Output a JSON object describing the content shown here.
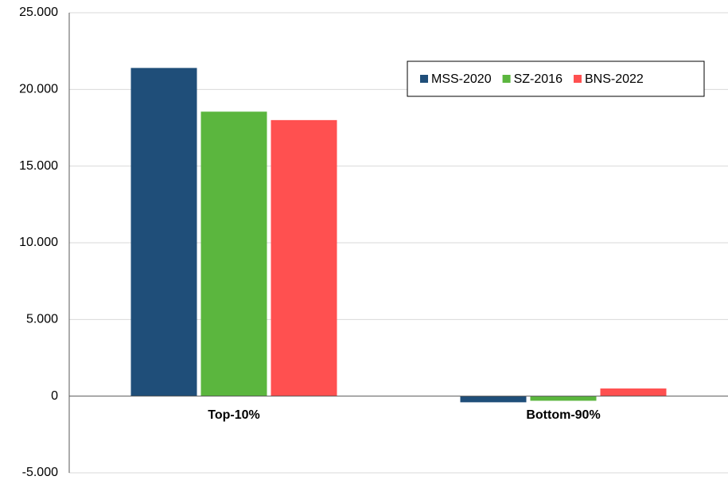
{
  "chart_data": {
    "type": "bar",
    "categories": [
      "Top-10%",
      "Bottom-90%"
    ],
    "series": [
      {
        "name": "MSS-2020",
        "color": "#1f4e79",
        "values": [
          21400,
          -400
        ]
      },
      {
        "name": "SZ-2016",
        "color": "#5bb63e",
        "values": [
          18550,
          -300
        ]
      },
      {
        "name": "BNS-2022",
        "color": "#ff5050",
        "values": [
          18000,
          500
        ]
      }
    ],
    "ylim": [
      -5000,
      25000
    ],
    "yticks": [
      {
        "value": -5000,
        "label": "-5.000"
      },
      0,
      {
        "value": 5000,
        "label": "5.000"
      },
      {
        "value": 10000,
        "label": "10.000"
      },
      {
        "value": 15000,
        "label": "15.000"
      },
      {
        "value": 20000,
        "label": "20.000"
      },
      {
        "value": 25000,
        "label": "25.000"
      }
    ],
    "grid": true,
    "legend": "upper-right"
  }
}
